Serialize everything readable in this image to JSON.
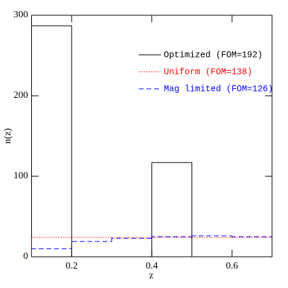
{
  "chart_data": {
    "type": "histogram",
    "xlabel": "z",
    "ylabel": "n(z)",
    "bins": [
      0.1,
      0.2,
      0.3,
      0.4,
      0.5,
      0.6,
      0.7
    ],
    "series": [
      {
        "name": "Optimized (FOM=192)",
        "color": "#000000",
        "dash": "solid",
        "values": [
          287,
          0,
          0,
          117,
          0,
          0
        ]
      },
      {
        "name": "Uniform (FOM=138)",
        "color": "#ff0000",
        "dash": "dotted",
        "values": [
          24,
          24,
          24,
          24,
          24,
          24
        ]
      },
      {
        "name": "Mag limited (FOM=126)",
        "color": "#0000ff",
        "dash": "dashed",
        "values": [
          10,
          19,
          23,
          25,
          26,
          25
        ]
      }
    ],
    "xlim": [
      0.1,
      0.7
    ],
    "xticks": [
      0.2,
      0.4,
      0.6
    ],
    "ylim": [
      0,
      300
    ],
    "yticks": [
      0,
      100,
      200,
      300
    ],
    "legend": "upper right"
  }
}
